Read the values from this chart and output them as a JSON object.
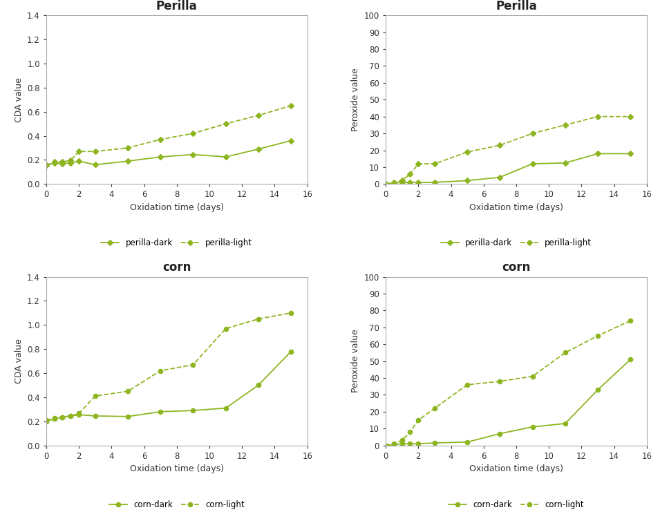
{
  "perilla_cda": {
    "x": [
      0,
      0.5,
      1,
      1.5,
      2,
      3,
      5,
      7,
      9,
      11,
      13,
      15
    ],
    "dark": [
      0.155,
      0.175,
      0.17,
      0.175,
      0.19,
      0.16,
      0.19,
      0.225,
      0.245,
      0.225,
      0.29,
      0.36
    ],
    "light": [
      0.155,
      0.185,
      0.185,
      0.195,
      0.27,
      0.27,
      0.3,
      0.37,
      0.42,
      0.5,
      0.57,
      0.65
    ]
  },
  "perilla_pv": {
    "x": [
      0,
      0.5,
      1,
      1.5,
      2,
      3,
      5,
      7,
      9,
      11,
      13,
      15
    ],
    "dark": [
      0,
      0.5,
      1,
      1,
      1,
      1,
      2,
      4,
      12,
      12.5,
      18,
      18
    ],
    "light": [
      0,
      1,
      2,
      6,
      12,
      12,
      19,
      23,
      30,
      35,
      40,
      40
    ]
  },
  "corn_cda": {
    "x": [
      0,
      0.5,
      1,
      1.5,
      2,
      3,
      5,
      7,
      9,
      11,
      13,
      15
    ],
    "dark": [
      0.2,
      0.22,
      0.235,
      0.245,
      0.255,
      0.245,
      0.24,
      0.28,
      0.29,
      0.31,
      0.5,
      0.78
    ],
    "light": [
      0.21,
      0.225,
      0.235,
      0.245,
      0.265,
      0.41,
      0.45,
      0.62,
      0.67,
      0.97,
      1.05,
      1.1
    ]
  },
  "corn_pv": {
    "x": [
      0,
      0.5,
      1,
      1.5,
      2,
      3,
      5,
      7,
      9,
      11,
      13,
      15
    ],
    "dark": [
      0,
      0.5,
      1,
      1,
      1,
      1.5,
      2,
      7,
      11,
      13,
      33,
      51
    ],
    "light": [
      0,
      1,
      3,
      8,
      15,
      22,
      36,
      38,
      41,
      55,
      65,
      74
    ]
  },
  "line_color": "#8db520",
  "bg_color": "#ffffff",
  "panel_bg": "#ffffff",
  "fig_bg": "#ffffff",
  "border_color": "#aaaaaa",
  "title_fontsize": 12,
  "label_fontsize": 9,
  "tick_fontsize": 8.5,
  "legend_fontsize": 8.5
}
